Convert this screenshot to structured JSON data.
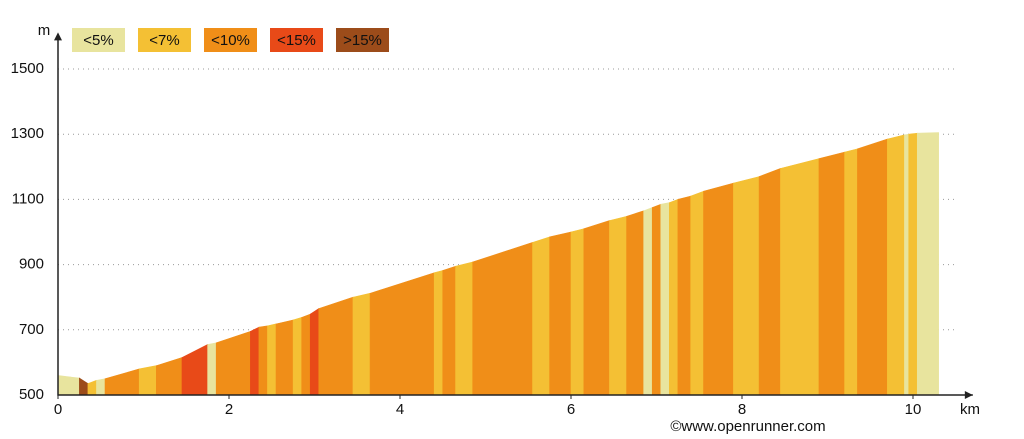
{
  "chart_data": {
    "type": "elevation-profile",
    "y_label": "m",
    "x_label": "km",
    "credit": "©www.openrunner.com",
    "legend": [
      {
        "name": "<5%",
        "color": "#e8e49e"
      },
      {
        "name": "<7%",
        "color": "#f4c034"
      },
      {
        "name": "<10%",
        "color": "#f08e18"
      },
      {
        "name": "<15%",
        "color": "#e84a18"
      },
      {
        "name": ">15%",
        "color": "#9c4c1a"
      }
    ],
    "x": [
      0.0,
      0.15,
      0.25,
      0.35,
      0.45,
      0.55,
      0.95,
      1.15,
      1.45,
      1.75,
      1.85,
      2.25,
      2.35,
      2.45,
      2.55,
      2.75,
      2.85,
      2.95,
      3.05,
      3.45,
      3.65,
      4.4,
      4.5,
      4.65,
      4.85,
      5.55,
      5.75,
      6.0,
      6.15,
      6.45,
      6.65,
      6.85,
      6.95,
      7.05,
      7.15,
      7.25,
      7.4,
      7.55,
      7.9,
      8.2,
      8.45,
      8.9,
      9.2,
      9.35,
      9.7,
      9.9,
      9.95,
      10.05,
      10.3
    ],
    "values": [
      560,
      555,
      552,
      535,
      545,
      550,
      580,
      590,
      615,
      655,
      660,
      695,
      708,
      712,
      718,
      730,
      738,
      748,
      765,
      800,
      812,
      875,
      882,
      895,
      908,
      968,
      985,
      1000,
      1010,
      1035,
      1048,
      1065,
      1075,
      1085,
      1090,
      1100,
      1110,
      1125,
      1150,
      1170,
      1195,
      1225,
      1245,
      1255,
      1285,
      1298,
      1300,
      1303,
      1305
    ],
    "segment_colors": [
      "#e8e49e",
      "#e8e49e",
      "#9c4c1a",
      "#f4c034",
      "#e8e49e",
      "#f08e18",
      "#f4c034",
      "#f08e18",
      "#e84a18",
      "#e8e49e",
      "#f08e18",
      "#e84a18",
      "#f08e18",
      "#f4c034",
      "#f08e18",
      "#f4c034",
      "#f08e18",
      "#e84a18",
      "#f08e18",
      "#f4c034",
      "#f08e18",
      "#f4c034",
      "#f08e18",
      "#f4c034",
      "#f08e18",
      "#f4c034",
      "#f08e18",
      "#f4c034",
      "#f08e18",
      "#f4c034",
      "#f08e18",
      "#e8e49e",
      "#f08e18",
      "#e8e49e",
      "#f4c034",
      "#f08e18",
      "#f4c034",
      "#f08e18",
      "#f4c034",
      "#f08e18",
      "#f4c034",
      "#f08e18",
      "#f4c034",
      "#f08e18",
      "#f4c034",
      "#e8e49e",
      "#f4c034",
      "#e8e49e"
    ],
    "xlim": [
      0,
      10.7
    ],
    "ylim": [
      500,
      1600
    ],
    "xticks": [
      0,
      2,
      4,
      6,
      8,
      10
    ],
    "yticks": [
      500,
      700,
      900,
      1100,
      1300,
      1500
    ],
    "grid": true
  }
}
